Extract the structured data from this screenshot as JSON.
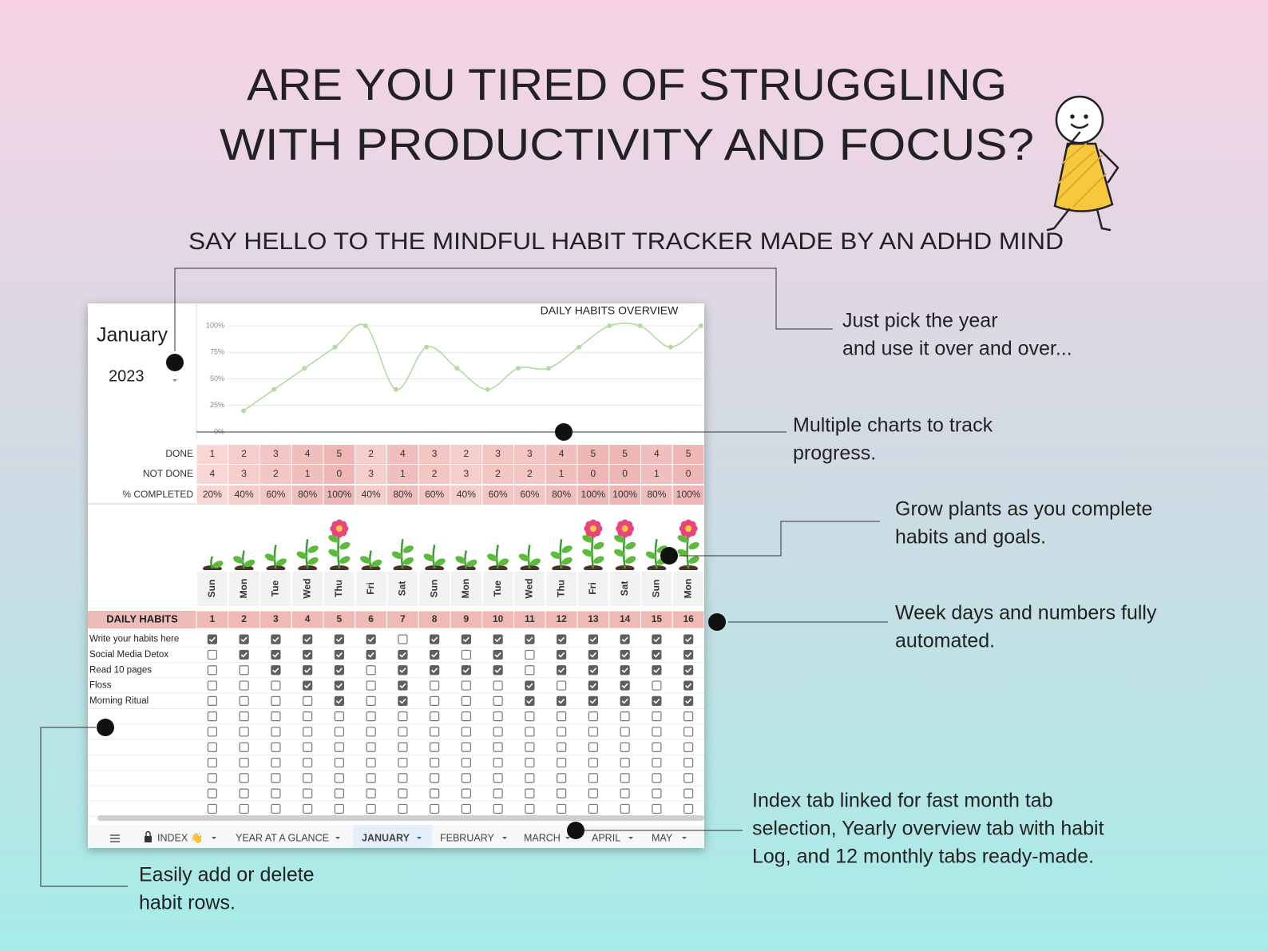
{
  "headline": [
    "ARE YOU TIRED OF STRUGGLING",
    "WITH PRODUCTIVITY AND FOCUS?"
  ],
  "subheadline": "SAY HELLO TO THE MINDFUL HABIT TRACKER MADE BY AN ADHD MIND",
  "callouts": [
    {
      "lines": [
        "Just pick the year",
        "and use it over and over..."
      ]
    },
    {
      "lines": [
        "Multiple charts to track",
        "progress."
      ]
    },
    {
      "lines": [
        "Grow plants  as you complete",
        "habits and goals."
      ]
    },
    {
      "lines": [
        "Week days and numbers fully",
        "automated."
      ]
    },
    {
      "lines": [
        "Index tab linked for fast month tab",
        "selection, Yearly overview tab with habit",
        "Log, and 12 monthly tabs ready-made."
      ]
    },
    {
      "lines": [
        "Easily add or delete",
        "habit rows."
      ]
    }
  ],
  "chart_data": {
    "type": "line",
    "title": "DAILY HABITS OVERVIEW",
    "x": [
      1,
      2,
      3,
      4,
      5,
      6,
      7,
      8,
      9,
      10,
      11,
      12,
      13,
      14,
      15,
      16
    ],
    "values": [
      20,
      40,
      60,
      80,
      100,
      40,
      80,
      60,
      40,
      60,
      60,
      80,
      100,
      100,
      80,
      100
    ],
    "color": "#b5d9a3",
    "xlim": [
      1,
      16
    ],
    "ylim": [
      0,
      100
    ],
    "yticks": [
      {
        "value": 0,
        "label": "0%"
      },
      {
        "value": 25,
        "label": "25%"
      },
      {
        "value": 50,
        "label": "50%"
      },
      {
        "value": 75,
        "label": "75%"
      },
      {
        "value": 100,
        "label": "100%"
      }
    ],
    "grid": true
  },
  "sheet": {
    "month": "January",
    "year": 2023,
    "stats": {
      "labels": [
        "DONE",
        "NOT DONE",
        "% COMPLETED"
      ],
      "done": [
        1,
        2,
        3,
        4,
        5,
        2,
        4,
        3,
        2,
        3,
        3,
        4,
        5,
        5,
        4,
        5
      ],
      "not_done": [
        4,
        3,
        2,
        1,
        0,
        3,
        1,
        2,
        3,
        2,
        2,
        1,
        0,
        0,
        1,
        0
      ],
      "percent": [
        "20%",
        "40%",
        "60%",
        "80%",
        "100%",
        "40%",
        "80%",
        "60%",
        "40%",
        "60%",
        "60%",
        "80%",
        "100%",
        "100%",
        "80%",
        "100%"
      ]
    },
    "weekdays": [
      "Sun",
      "Mon",
      "Tue",
      "Wed",
      "Thu",
      "Fri",
      "Sat",
      "Sun",
      "Mon",
      "Tue",
      "Wed",
      "Thu",
      "Fri",
      "Sat",
      "Sun",
      "Mon"
    ],
    "habits_header": "DAILY HABITS",
    "day_numbers": [
      1,
      2,
      3,
      4,
      5,
      6,
      7,
      8,
      9,
      10,
      11,
      12,
      13,
      14,
      15,
      16
    ],
    "habits": [
      "Write your habits here",
      "Social Media Detox",
      "Read 10 pages",
      "Floss",
      "Morning Ritual",
      null,
      null,
      null,
      null,
      null,
      null,
      null
    ],
    "checks": [
      [
        true,
        true,
        true,
        true,
        true,
        true,
        false,
        true,
        true,
        true,
        true,
        true,
        true,
        true,
        true,
        true
      ],
      [
        false,
        true,
        true,
        true,
        true,
        true,
        true,
        true,
        false,
        true,
        false,
        true,
        true,
        true,
        true,
        true
      ],
      [
        false,
        false,
        true,
        true,
        true,
        false,
        true,
        true,
        true,
        true,
        false,
        true,
        true,
        true,
        true,
        true
      ],
      [
        false,
        false,
        false,
        true,
        true,
        false,
        true,
        false,
        false,
        false,
        true,
        false,
        true,
        true,
        false,
        true
      ],
      [
        false,
        false,
        false,
        false,
        true,
        false,
        true,
        false,
        false,
        false,
        true,
        true,
        true,
        true,
        true,
        true
      ],
      [
        false,
        false,
        false,
        false,
        false,
        false,
        false,
        false,
        false,
        false,
        false,
        false,
        false,
        false,
        false,
        false
      ],
      [
        false,
        false,
        false,
        false,
        false,
        false,
        false,
        false,
        false,
        false,
        false,
        false,
        false,
        false,
        false,
        false
      ],
      [
        false,
        false,
        false,
        false,
        false,
        false,
        false,
        false,
        false,
        false,
        false,
        false,
        false,
        false,
        false,
        false
      ],
      [
        false,
        false,
        false,
        false,
        false,
        false,
        false,
        false,
        false,
        false,
        false,
        false,
        false,
        false,
        false,
        false
      ],
      [
        false,
        false,
        false,
        false,
        false,
        false,
        false,
        false,
        false,
        false,
        false,
        false,
        false,
        false,
        false,
        false
      ],
      [
        false,
        false,
        false,
        false,
        false,
        false,
        false,
        false,
        false,
        false,
        false,
        false,
        false,
        false,
        false,
        false
      ],
      [
        false,
        false,
        false,
        false,
        false,
        false,
        false,
        false,
        false,
        false,
        false,
        false,
        false,
        false,
        false,
        false
      ]
    ],
    "tabs": [
      {
        "label": "INDEX 👋",
        "active": false
      },
      {
        "label": "YEAR AT A GLANCE",
        "active": false
      },
      {
        "label": "JANUARY",
        "active": true
      },
      {
        "label": "FEBRUARY",
        "active": false
      },
      {
        "label": "MARCH",
        "active": false
      },
      {
        "label": "APRIL",
        "active": false
      },
      {
        "label": "MAY",
        "active": false
      }
    ]
  }
}
